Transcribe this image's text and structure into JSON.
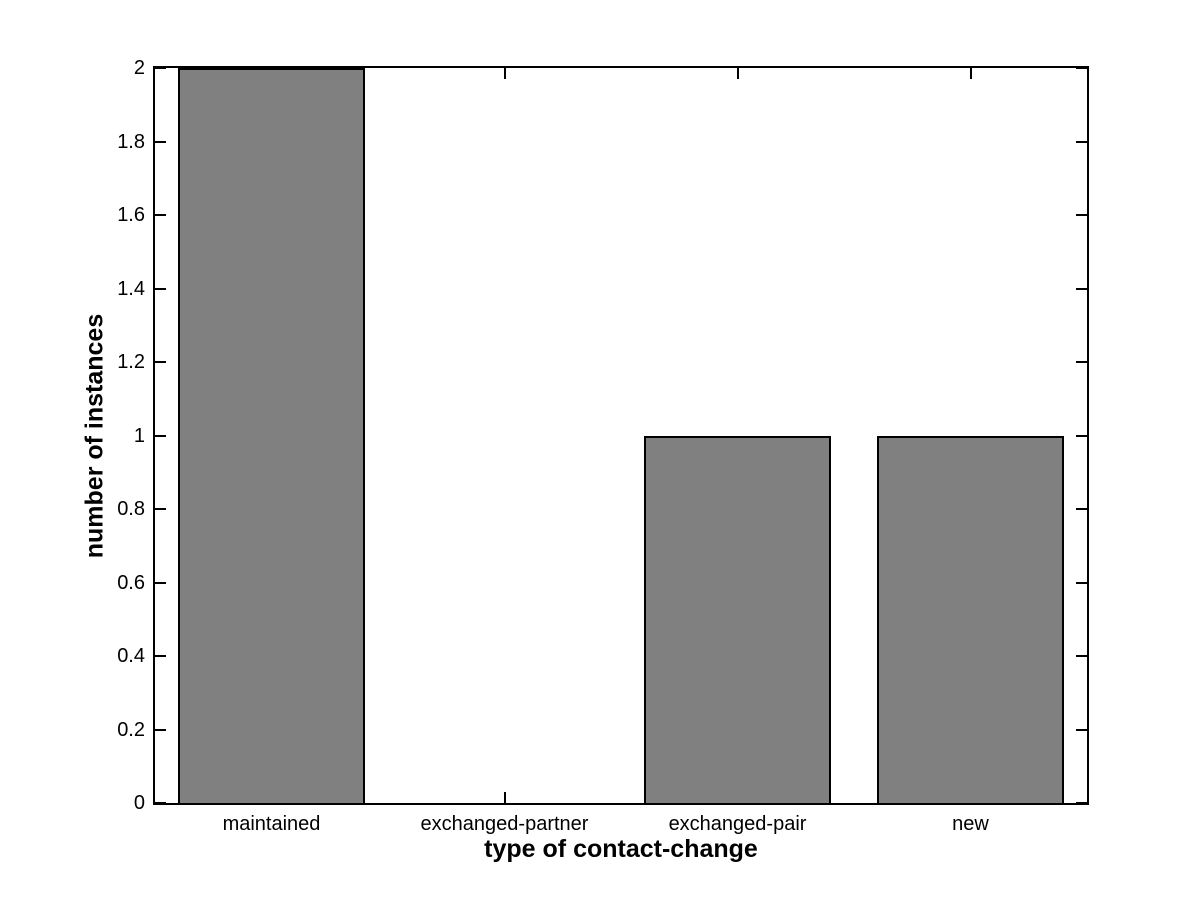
{
  "figure": {
    "background": "#ffffff"
  },
  "chart_data": {
    "type": "bar",
    "title": "",
    "xlabel": "type of contact-change",
    "ylabel": "number of instances",
    "categories": [
      "maintained",
      "exchanged-partner",
      "exchanged-pair",
      "new"
    ],
    "values": [
      2,
      0,
      1,
      1
    ],
    "ylim": [
      0,
      2
    ],
    "ytick_values": [
      0,
      0.2,
      0.4,
      0.6,
      0.8,
      1,
      1.2,
      1.4,
      1.6,
      1.8,
      2
    ],
    "ytick_labels": [
      "0",
      "0.2",
      "0.4",
      "0.6",
      "0.8",
      "1",
      "1.2",
      "1.4",
      "1.6",
      "1.8",
      "2"
    ],
    "bar_width_fraction": 0.8,
    "bar_color": "#808080",
    "bar_edge_color": "#000000",
    "axis_color": "#000000",
    "grid": false,
    "legend": "none",
    "tick_direction": "in"
  }
}
